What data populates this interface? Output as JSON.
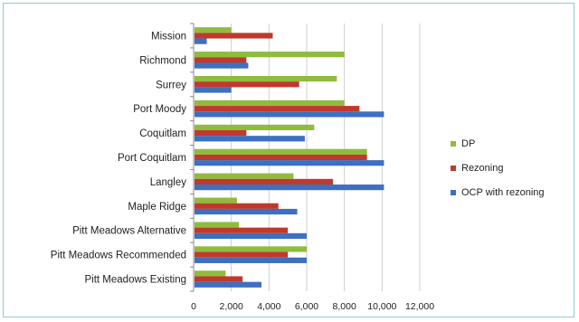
{
  "chart_data": {
    "type": "bar",
    "orientation": "horizontal",
    "categories": [
      "Mission",
      "Richmond",
      "Surrey",
      "Port Moody",
      "Coquitlam",
      "Port Coquitlam",
      "Langley",
      "Maple Ridge",
      "Pitt Meadows Alternative",
      "Pitt Meadows Recommended",
      "Pitt Meadows Existing"
    ],
    "series": [
      {
        "name": "DP",
        "color": "#8fbc3f",
        "values": [
          2000,
          8000,
          7600,
          8000,
          6400,
          9200,
          5300,
          2300,
          2400,
          6000,
          1700
        ]
      },
      {
        "name": "Rezoning",
        "color": "#c0392b",
        "values": [
          4200,
          2800,
          5600,
          8800,
          2800,
          9200,
          7400,
          4500,
          5000,
          5000,
          2600
        ]
      },
      {
        "name": "OCP with rezoning",
        "color": "#3e6fc0",
        "values": [
          700,
          2900,
          2000,
          10100,
          5900,
          10100,
          10100,
          5500,
          6000,
          6000,
          3600
        ]
      }
    ],
    "x_ticks": [
      "0",
      "2,000",
      "4,000",
      "6,000",
      "8,000",
      "10,000",
      "12,000"
    ],
    "xlim": [
      0,
      12000
    ],
    "grid": true,
    "legend_position": "right",
    "title": "",
    "xlabel": "",
    "ylabel": ""
  }
}
